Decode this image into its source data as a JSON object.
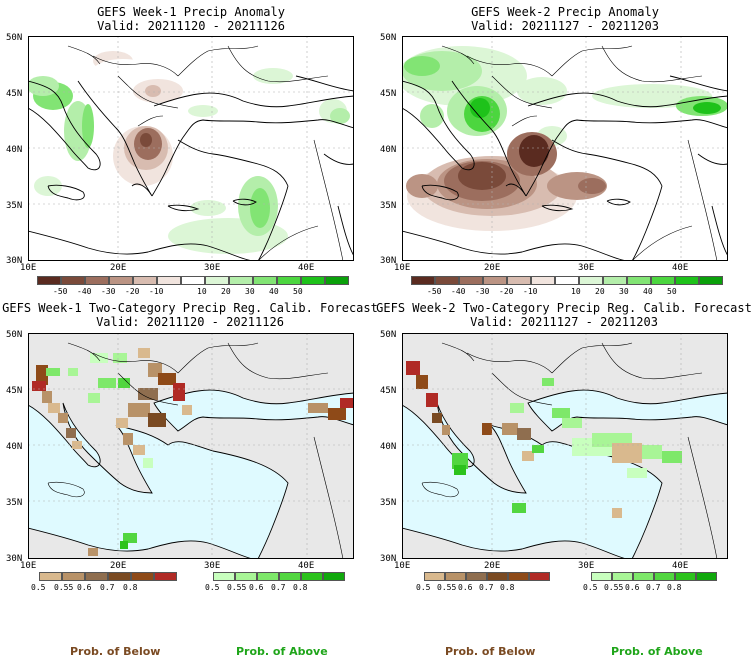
{
  "panels": [
    {
      "id": "w1-anom",
      "title": "GEFS Week-1 Precip Anomaly",
      "valid": "Valid: 20211120 - 20211126",
      "type": "anomaly"
    },
    {
      "id": "w2-anom",
      "title": "GEFS Week-2 Precip Anomaly",
      "valid": "Valid: 20211127 - 20211203",
      "type": "anomaly"
    },
    {
      "id": "w1-cat",
      "title": "GEFS Week-1 Two-Category Precip Reg. Calib. Forecast",
      "valid": "Valid: 20211120 - 20211126",
      "type": "category"
    },
    {
      "id": "w2-cat",
      "title": "GEFS Week-2 Two-Category Precip Reg. Calib. Forecast",
      "valid": "Valid: 20211127 - 20211203",
      "type": "category"
    }
  ],
  "axes": {
    "lat_labels": [
      "50N",
      "45N",
      "40N",
      "35N",
      "30N"
    ],
    "lon_labels": [
      "10E",
      "20E",
      "30E",
      "40E"
    ]
  },
  "anomaly_colorbar": {
    "labels": [
      "-50",
      "-40",
      "-30",
      "-20",
      "-10",
      "10",
      "20",
      "30",
      "40",
      "50"
    ],
    "colors": [
      "#5a2b20",
      "#7a4a3a",
      "#9c6e5e",
      "#bb9484",
      "#d8bcb0",
      "#f1e4de",
      "#ffffff",
      "#dcf6d6",
      "#b4eeaa",
      "#82e474",
      "#4cd63f",
      "#1ec21a",
      "#0aa00a"
    ]
  },
  "below_colorbar": {
    "labels": [
      "0.5",
      "0.55",
      "0.6",
      "0.7",
      "0.8"
    ],
    "colors": [
      "#d9b98e",
      "#b89268",
      "#8f6e4f",
      "#7a4a22",
      "#8e4a18",
      "#b02a25"
    ]
  },
  "above_colorbar": {
    "labels": [
      "0.5",
      "0.55",
      "0.6",
      "0.7",
      "0.8"
    ],
    "colors": [
      "#c8ffbe",
      "#a8f596",
      "#7ee86a",
      "#52d640",
      "#2cc21c",
      "#10a80c"
    ]
  },
  "legend": {
    "below": "Prob. of Below",
    "above": "Prob. of Above",
    "below_color": "#7a4a22",
    "above_color": "#1fa51a"
  },
  "colors": {
    "sea_category": "#dffaff",
    "land_outside": "#e8e8e8"
  }
}
